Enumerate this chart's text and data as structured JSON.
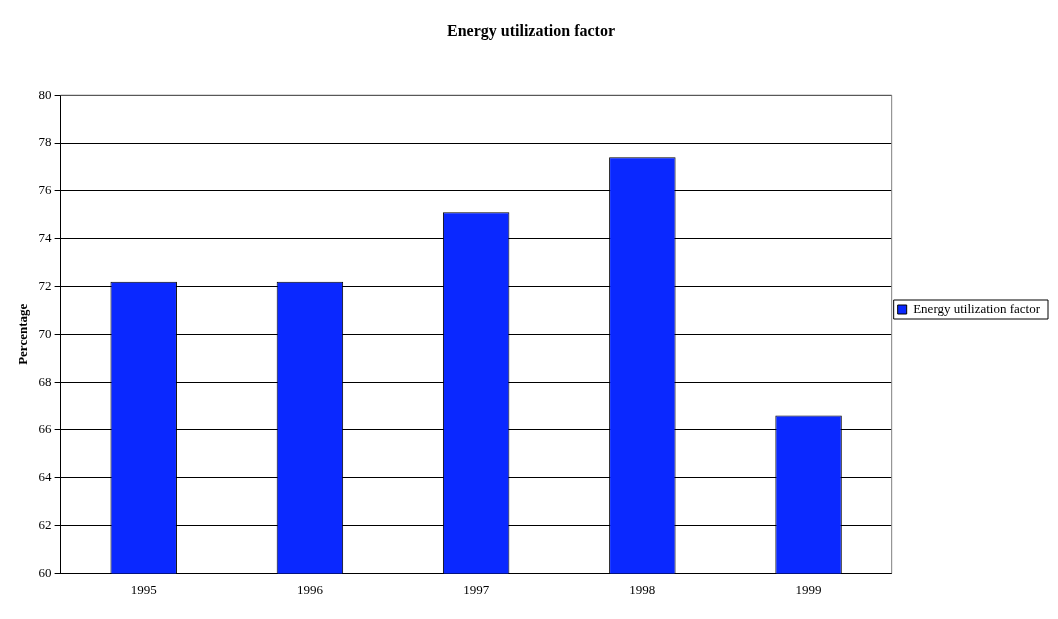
{
  "chart_data": {
    "type": "bar",
    "title": "Energy utilization factor",
    "ylabel": "Percentage",
    "categories": [
      "1995",
      "1996",
      "1997",
      "1998",
      "1999"
    ],
    "series": [
      {
        "name": "Energy utilization factor",
        "color": "#0a28ff",
        "values": [
          72.2,
          72.2,
          75.1,
          77.4,
          66.6
        ]
      }
    ],
    "ylim": [
      60,
      80
    ],
    "yticks": [
      60,
      62,
      64,
      66,
      68,
      70,
      72,
      74,
      76,
      78,
      80
    ],
    "grid": "y",
    "legend": "right"
  }
}
